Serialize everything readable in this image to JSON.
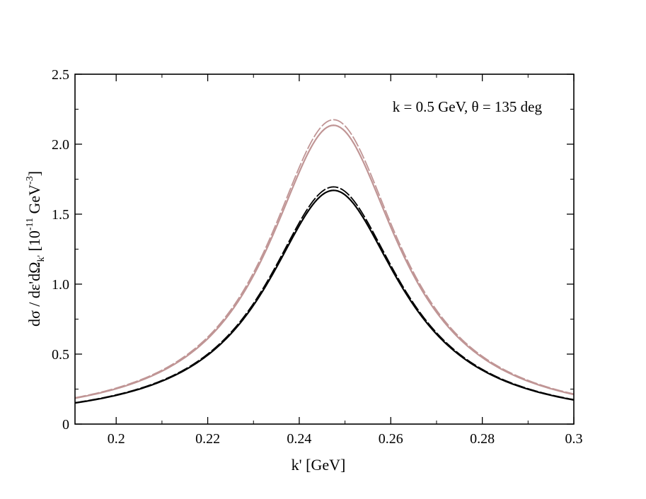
{
  "chart_data": {
    "type": "line",
    "annotation": "k = 0.5 GeV, θ = 135 deg",
    "xlabel": "k' [GeV]",
    "ylabel": {
      "prefix": "dσ / dε'dΩ",
      "sub": "k'",
      "bracket_open": " [10",
      "exp": "-11",
      "unit": " GeV",
      "unit_exp": "-3",
      "bracket_close": "]"
    },
    "xlim": [
      0.191,
      0.3
    ],
    "ylim": [
      0,
      2.5
    ],
    "xticks": [
      {
        "value": 0.2,
        "label": "0.2"
      },
      {
        "value": 0.22,
        "label": "0.22"
      },
      {
        "value": 0.24,
        "label": "0.24"
      },
      {
        "value": 0.26,
        "label": "0.26"
      },
      {
        "value": 0.28,
        "label": "0.28"
      },
      {
        "value": 0.3,
        "label": "0.3"
      }
    ],
    "yticks": [
      {
        "value": 0,
        "label": "0"
      },
      {
        "value": 0.5,
        "label": "0.5"
      },
      {
        "value": 1.0,
        "label": "1.0"
      },
      {
        "value": 1.5,
        "label": "1.5"
      },
      {
        "value": 2.0,
        "label": "2.0"
      },
      {
        "value": 2.5,
        "label": "2.5"
      }
    ],
    "series": [
      {
        "name": "black-solid",
        "color": "#000000",
        "dash": "solid",
        "peak_x": 0.2475,
        "peak": 1.67,
        "gamma": 0.0178,
        "baseline": 0.0
      },
      {
        "name": "black-dash",
        "color": "#000000",
        "dash": "dash",
        "peak_x": 0.2475,
        "peak": 1.695,
        "gamma": 0.0178,
        "baseline": 0.0
      },
      {
        "name": "pink-solid",
        "color": "#c09595",
        "dash": "solid",
        "peak_x": 0.2475,
        "peak": 2.135,
        "gamma": 0.0174,
        "baseline": 0.0
      },
      {
        "name": "pink-dash",
        "color": "#c09595",
        "dash": "dash",
        "peak_x": 0.2475,
        "peak": 2.175,
        "gamma": 0.0174,
        "baseline": 0.0
      }
    ]
  }
}
